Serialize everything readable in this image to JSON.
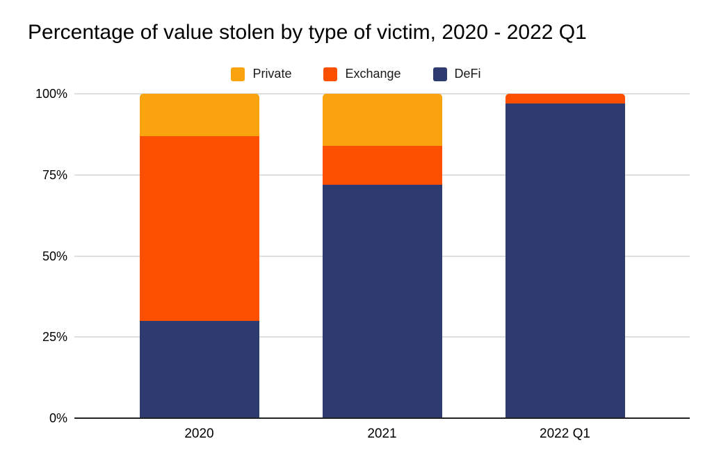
{
  "title": "Percentage of value stolen by type of victim, 2020 - 2022 Q1",
  "chart_data": {
    "type": "bar",
    "stacked": true,
    "normalized_percent": true,
    "title": "Percentage of value stolen by type of victim, 2020 - 2022 Q1",
    "categories": [
      "2020",
      "2021",
      "2022 Q1"
    ],
    "series": [
      {
        "name": "Private",
        "color": "#F9A40E",
        "values": [
          13,
          16,
          0
        ]
      },
      {
        "name": "Exchange",
        "color": "#FC4F00",
        "values": [
          57,
          12,
          3
        ]
      },
      {
        "name": "DeFi",
        "color": "#2D3B70",
        "values": [
          30,
          72,
          97
        ]
      }
    ],
    "xlabel": "",
    "ylabel": "",
    "ylim": [
      0,
      100
    ],
    "y_ticks": [
      "100%",
      "75%",
      "50%",
      "25%",
      "0%"
    ],
    "grid": true,
    "legend_position": "top-center",
    "colors": {
      "grid": "#DEDEDE",
      "axis": "#212121",
      "text": "#000000"
    }
  }
}
